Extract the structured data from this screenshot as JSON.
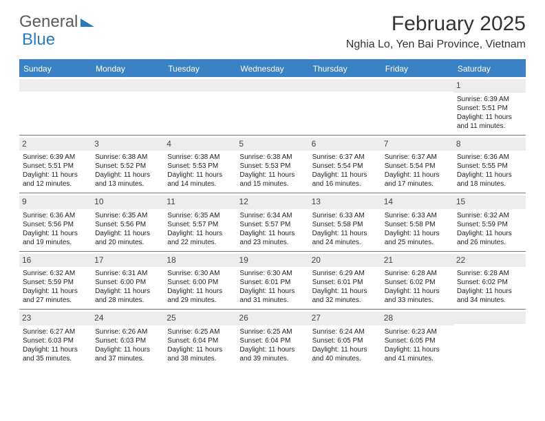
{
  "logo": {
    "text1": "General",
    "text2": "Blue"
  },
  "title": "February 2025",
  "location": "Nghia Lo, Yen Bai Province, Vietnam",
  "colors": {
    "headerBar": "#3a82c4",
    "altRow": "#ededed",
    "rule": "#7a7a7a"
  },
  "dayNames": [
    "Sunday",
    "Monday",
    "Tuesday",
    "Wednesday",
    "Thursday",
    "Friday",
    "Saturday"
  ],
  "weeks": [
    [
      null,
      null,
      null,
      null,
      null,
      null,
      {
        "n": "1",
        "sr": "Sunrise: 6:39 AM",
        "ss": "Sunset: 5:51 PM",
        "dl": "Daylight: 11 hours and 11 minutes."
      }
    ],
    [
      {
        "n": "2",
        "sr": "Sunrise: 6:39 AM",
        "ss": "Sunset: 5:51 PM",
        "dl": "Daylight: 11 hours and 12 minutes."
      },
      {
        "n": "3",
        "sr": "Sunrise: 6:38 AM",
        "ss": "Sunset: 5:52 PM",
        "dl": "Daylight: 11 hours and 13 minutes."
      },
      {
        "n": "4",
        "sr": "Sunrise: 6:38 AM",
        "ss": "Sunset: 5:53 PM",
        "dl": "Daylight: 11 hours and 14 minutes."
      },
      {
        "n": "5",
        "sr": "Sunrise: 6:38 AM",
        "ss": "Sunset: 5:53 PM",
        "dl": "Daylight: 11 hours and 15 minutes."
      },
      {
        "n": "6",
        "sr": "Sunrise: 6:37 AM",
        "ss": "Sunset: 5:54 PM",
        "dl": "Daylight: 11 hours and 16 minutes."
      },
      {
        "n": "7",
        "sr": "Sunrise: 6:37 AM",
        "ss": "Sunset: 5:54 PM",
        "dl": "Daylight: 11 hours and 17 minutes."
      },
      {
        "n": "8",
        "sr": "Sunrise: 6:36 AM",
        "ss": "Sunset: 5:55 PM",
        "dl": "Daylight: 11 hours and 18 minutes."
      }
    ],
    [
      {
        "n": "9",
        "sr": "Sunrise: 6:36 AM",
        "ss": "Sunset: 5:56 PM",
        "dl": "Daylight: 11 hours and 19 minutes."
      },
      {
        "n": "10",
        "sr": "Sunrise: 6:35 AM",
        "ss": "Sunset: 5:56 PM",
        "dl": "Daylight: 11 hours and 20 minutes."
      },
      {
        "n": "11",
        "sr": "Sunrise: 6:35 AM",
        "ss": "Sunset: 5:57 PM",
        "dl": "Daylight: 11 hours and 22 minutes."
      },
      {
        "n": "12",
        "sr": "Sunrise: 6:34 AM",
        "ss": "Sunset: 5:57 PM",
        "dl": "Daylight: 11 hours and 23 minutes."
      },
      {
        "n": "13",
        "sr": "Sunrise: 6:33 AM",
        "ss": "Sunset: 5:58 PM",
        "dl": "Daylight: 11 hours and 24 minutes."
      },
      {
        "n": "14",
        "sr": "Sunrise: 6:33 AM",
        "ss": "Sunset: 5:58 PM",
        "dl": "Daylight: 11 hours and 25 minutes."
      },
      {
        "n": "15",
        "sr": "Sunrise: 6:32 AM",
        "ss": "Sunset: 5:59 PM",
        "dl": "Daylight: 11 hours and 26 minutes."
      }
    ],
    [
      {
        "n": "16",
        "sr": "Sunrise: 6:32 AM",
        "ss": "Sunset: 5:59 PM",
        "dl": "Daylight: 11 hours and 27 minutes."
      },
      {
        "n": "17",
        "sr": "Sunrise: 6:31 AM",
        "ss": "Sunset: 6:00 PM",
        "dl": "Daylight: 11 hours and 28 minutes."
      },
      {
        "n": "18",
        "sr": "Sunrise: 6:30 AM",
        "ss": "Sunset: 6:00 PM",
        "dl": "Daylight: 11 hours and 29 minutes."
      },
      {
        "n": "19",
        "sr": "Sunrise: 6:30 AM",
        "ss": "Sunset: 6:01 PM",
        "dl": "Daylight: 11 hours and 31 minutes."
      },
      {
        "n": "20",
        "sr": "Sunrise: 6:29 AM",
        "ss": "Sunset: 6:01 PM",
        "dl": "Daylight: 11 hours and 32 minutes."
      },
      {
        "n": "21",
        "sr": "Sunrise: 6:28 AM",
        "ss": "Sunset: 6:02 PM",
        "dl": "Daylight: 11 hours and 33 minutes."
      },
      {
        "n": "22",
        "sr": "Sunrise: 6:28 AM",
        "ss": "Sunset: 6:02 PM",
        "dl": "Daylight: 11 hours and 34 minutes."
      }
    ],
    [
      {
        "n": "23",
        "sr": "Sunrise: 6:27 AM",
        "ss": "Sunset: 6:03 PM",
        "dl": "Daylight: 11 hours and 35 minutes."
      },
      {
        "n": "24",
        "sr": "Sunrise: 6:26 AM",
        "ss": "Sunset: 6:03 PM",
        "dl": "Daylight: 11 hours and 37 minutes."
      },
      {
        "n": "25",
        "sr": "Sunrise: 6:25 AM",
        "ss": "Sunset: 6:04 PM",
        "dl": "Daylight: 11 hours and 38 minutes."
      },
      {
        "n": "26",
        "sr": "Sunrise: 6:25 AM",
        "ss": "Sunset: 6:04 PM",
        "dl": "Daylight: 11 hours and 39 minutes."
      },
      {
        "n": "27",
        "sr": "Sunrise: 6:24 AM",
        "ss": "Sunset: 6:05 PM",
        "dl": "Daylight: 11 hours and 40 minutes."
      },
      {
        "n": "28",
        "sr": "Sunrise: 6:23 AM",
        "ss": "Sunset: 6:05 PM",
        "dl": "Daylight: 11 hours and 41 minutes."
      },
      null
    ]
  ]
}
